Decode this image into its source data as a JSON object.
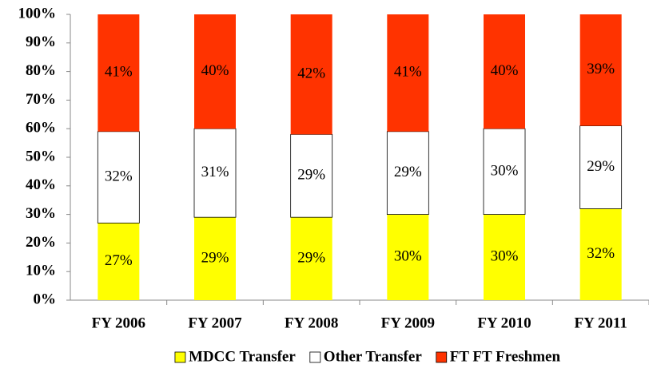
{
  "chart_data": {
    "type": "stacked_bar",
    "categories": [
      "FY 2006",
      "FY 2007",
      "FY 2008",
      "FY 2009",
      "FY 2010",
      "FY 2011"
    ],
    "series": [
      {
        "name": "MDCC Transfer",
        "color": "#ffff00",
        "values": [
          27,
          29,
          29,
          30,
          30,
          32
        ],
        "value_labels": [
          "27%",
          "29%",
          "29%",
          "30%",
          "30%",
          "32%"
        ]
      },
      {
        "name": "Other Transfer",
        "color": "#ffffff",
        "values": [
          32,
          31,
          29,
          29,
          30,
          29
        ],
        "value_labels": [
          "32%",
          "31%",
          "29%",
          "29%",
          "30%",
          "29%"
        ]
      },
      {
        "name": "FT FT Freshmen",
        "color": "#ff3300",
        "values": [
          41,
          40,
          42,
          41,
          40,
          39
        ],
        "value_labels": [
          "41%",
          "40%",
          "42%",
          "41%",
          "40%",
          "39%"
        ]
      }
    ],
    "ylim": [
      0,
      100
    ],
    "yticks": [
      {
        "value": 0,
        "label": "0%"
      },
      {
        "value": 10,
        "label": "10%"
      },
      {
        "value": 20,
        "label": "20%"
      },
      {
        "value": 30,
        "label": "30%"
      },
      {
        "value": 40,
        "label": "40%"
      },
      {
        "value": 50,
        "label": "50%"
      },
      {
        "value": 60,
        "label": "60%"
      },
      {
        "value": 70,
        "label": "70%"
      },
      {
        "value": 80,
        "label": "80%"
      },
      {
        "value": 90,
        "label": "90%"
      },
      {
        "value": 100,
        "label": "100%"
      }
    ],
    "grid": false,
    "legend": "bottom"
  }
}
